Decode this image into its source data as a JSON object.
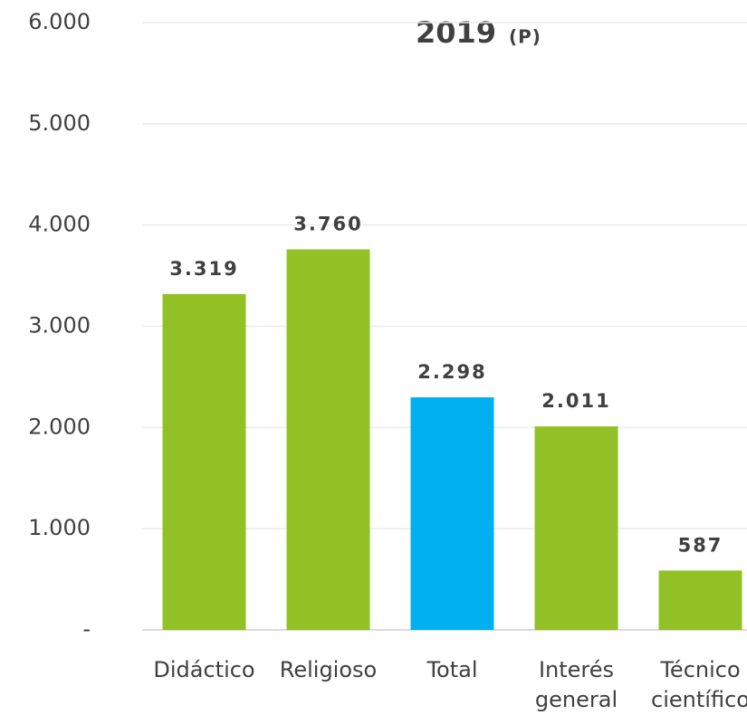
{
  "chart_data": {
    "type": "bar",
    "title": "2019",
    "title_note": "(P)",
    "categories": [
      [
        "Didáctico"
      ],
      [
        "Religioso"
      ],
      [
        "Total"
      ],
      [
        "Interés",
        "general"
      ],
      [
        "Técnico",
        "científico"
      ]
    ],
    "values": [
      3319,
      3760,
      2298,
      2011,
      587
    ],
    "value_labels": [
      "3.319",
      "3.760",
      "2.298",
      "2.011",
      "587"
    ],
    "colors": [
      "#92c126",
      "#92c126",
      "#00b0f0",
      "#92c126",
      "#92c126"
    ],
    "ylim": [
      0,
      6000
    ],
    "yticks": [
      {
        "value": 0,
        "label": "-"
      },
      {
        "value": 1000,
        "label": "1.000"
      },
      {
        "value": 2000,
        "label": "2.000"
      },
      {
        "value": 3000,
        "label": "3.000"
      },
      {
        "value": 4000,
        "label": "4.000"
      },
      {
        "value": 5000,
        "label": "5.000"
      },
      {
        "value": 6000,
        "label": "6.000"
      }
    ],
    "grid": true
  }
}
